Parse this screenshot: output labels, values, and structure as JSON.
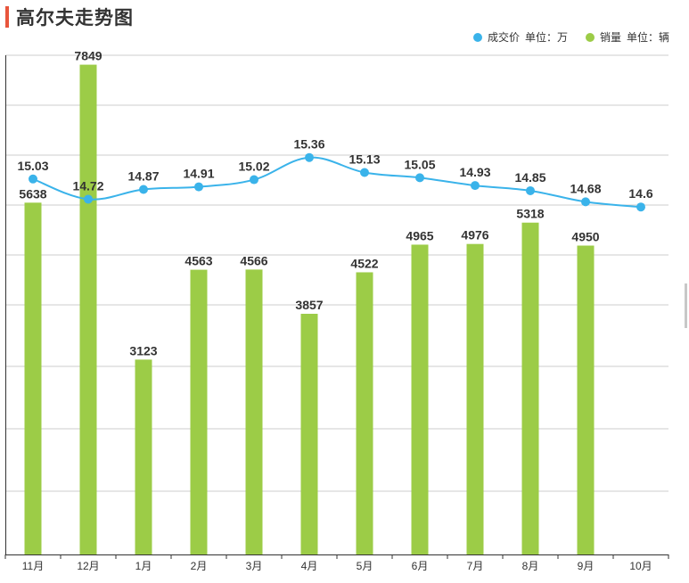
{
  "title": "高尔夫走势图",
  "legend": {
    "price": {
      "name": "成交价",
      "unit": "单位：万",
      "color": "#3ab3ea"
    },
    "sales": {
      "name": "销量",
      "unit": "单位：辆",
      "color": "#9ccc47"
    }
  },
  "chart_data": {
    "type": "bar+line",
    "categories": [
      "11月",
      "12月",
      "1月",
      "2月",
      "3月",
      "4月",
      "5月",
      "6月",
      "7月",
      "8月",
      "9月",
      "10月"
    ],
    "series": [
      {
        "name": "成交价",
        "type": "line",
        "unit": "万",
        "values": [
          15.03,
          14.72,
          14.87,
          14.91,
          15.02,
          15.36,
          15.13,
          15.05,
          14.93,
          14.85,
          14.68,
          14.6
        ],
        "labels": [
          "15.03",
          "14.72",
          "14.87",
          "14.91",
          "15.02",
          "15.36",
          "15.13",
          "15.05",
          "14.93",
          "14.85",
          "14.68",
          "14.6"
        ]
      },
      {
        "name": "销量",
        "type": "bar",
        "unit": "辆",
        "values": [
          5638,
          7849,
          3123,
          4563,
          4566,
          3857,
          4522,
          4965,
          4976,
          5318,
          4950,
          null
        ],
        "labels": [
          "5638",
          "7849",
          "3123",
          "4563",
          "4566",
          "3857",
          "4522",
          "4965",
          "4976",
          "5318",
          "4950",
          ""
        ]
      }
    ],
    "grid": true,
    "legend_position": "top-right"
  }
}
